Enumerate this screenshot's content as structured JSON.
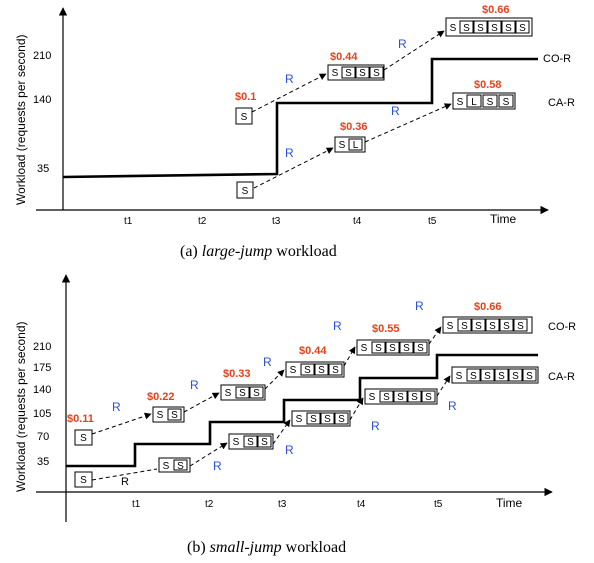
{
  "colors": {
    "price": "#e8401c",
    "r_label": "#2b4fd6",
    "line": "#000000"
  },
  "panels": [
    {
      "id": "a",
      "ylabel": "Workload (requests per second)",
      "xlabel": "Time",
      "yticks": [
        "35",
        "140",
        "210"
      ],
      "xticks": [
        "t1",
        "t2",
        "t3",
        "t4",
        "t5"
      ],
      "series_labels": [
        "CO-R",
        "CA-R"
      ],
      "prices": [
        "$0.1",
        "$0.44",
        "$0.66",
        "$0.36",
        "$0.58"
      ],
      "r_labels": [
        "R",
        "R",
        "R",
        "R"
      ],
      "caption_prefix": "(a) ",
      "caption_italic": "large-jump",
      "caption_suffix": " workload",
      "co_boxes": [
        [
          "S"
        ],
        [
          "S",
          "S",
          "S",
          "S"
        ],
        [
          "S",
          "S",
          "S",
          "S",
          "S",
          "S"
        ]
      ],
      "ca_boxes": [
        [
          "S"
        ],
        [
          "S",
          "L"
        ],
        [
          "S",
          "L",
          "S",
          "S"
        ]
      ]
    },
    {
      "id": "b",
      "ylabel": "Workload (requests per second)",
      "xlabel": "Time",
      "yticks": [
        "35",
        "70",
        "105",
        "140",
        "175",
        "210"
      ],
      "xticks": [
        "t1",
        "t2",
        "t3",
        "t4",
        "t5"
      ],
      "series_labels": [
        "CO-R",
        "CA-R"
      ],
      "prices": [
        "$0.11",
        "$0.22",
        "$0.33",
        "$0.44",
        "$0.55",
        "$0.66"
      ],
      "r_labels": [
        "R",
        "R",
        "R",
        "R",
        "R",
        "R",
        "R",
        "R",
        "R",
        "R"
      ],
      "caption_prefix": "(b) ",
      "caption_italic": "small-jump",
      "caption_suffix": " workload",
      "co_boxes": [
        [
          "S"
        ],
        [
          "S",
          "S"
        ],
        [
          "S",
          "S",
          "S"
        ],
        [
          "S",
          "S",
          "S",
          "S"
        ],
        [
          "S",
          "S",
          "S",
          "S",
          "S"
        ],
        [
          "S",
          "S",
          "S",
          "S",
          "S",
          "S"
        ]
      ],
      "ca_boxes": [
        [
          "S"
        ],
        [
          "S",
          "S"
        ],
        [
          "S",
          "S",
          "S"
        ],
        [
          "S",
          "S",
          "S",
          "S"
        ],
        [
          "S",
          "S",
          "S",
          "S",
          "S"
        ],
        [
          "S",
          "S",
          "S",
          "S",
          "S",
          "S"
        ]
      ]
    }
  ]
}
